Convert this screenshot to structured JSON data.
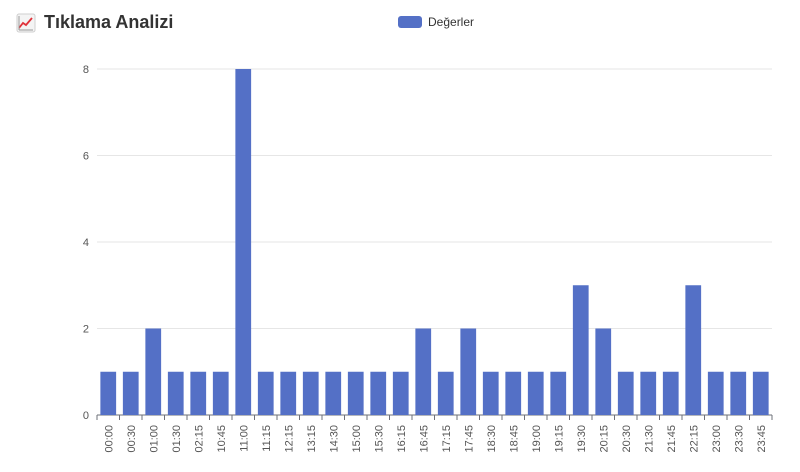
{
  "header": {
    "title": "Tıklama Analizi",
    "icon": "chart-increasing-icon"
  },
  "legend": {
    "label": "Değerler"
  },
  "colors": {
    "bar": "#5470c6",
    "grid": "#e6e6e6",
    "axis": "#6e7079"
  },
  "chart_data": {
    "type": "bar",
    "title": "Tıklama Analizi",
    "categories": [
      "00:00",
      "00:30",
      "01:00",
      "01:30",
      "02:15",
      "10:45",
      "11:00",
      "11:15",
      "12:15",
      "13:15",
      "14:30",
      "15:00",
      "15:30",
      "16:15",
      "16:45",
      "17:15",
      "17:45",
      "18:30",
      "18:45",
      "19:00",
      "19:15",
      "19:30",
      "20:15",
      "20:30",
      "21:30",
      "21:45",
      "22:15",
      "23:00",
      "23:30",
      "23:45"
    ],
    "series": [
      {
        "name": "Değerler",
        "values": [
          1,
          1,
          2,
          1,
          1,
          1,
          8,
          1,
          1,
          1,
          1,
          1,
          1,
          1,
          2,
          1,
          2,
          1,
          1,
          1,
          1,
          3,
          2,
          1,
          1,
          1,
          3,
          1,
          1,
          1
        ]
      }
    ],
    "ylim": [
      0,
      8
    ],
    "yticks": [
      0,
      2,
      4,
      6,
      8
    ],
    "grid": true,
    "legend_position": "top-center",
    "xlabel": "",
    "ylabel": ""
  }
}
